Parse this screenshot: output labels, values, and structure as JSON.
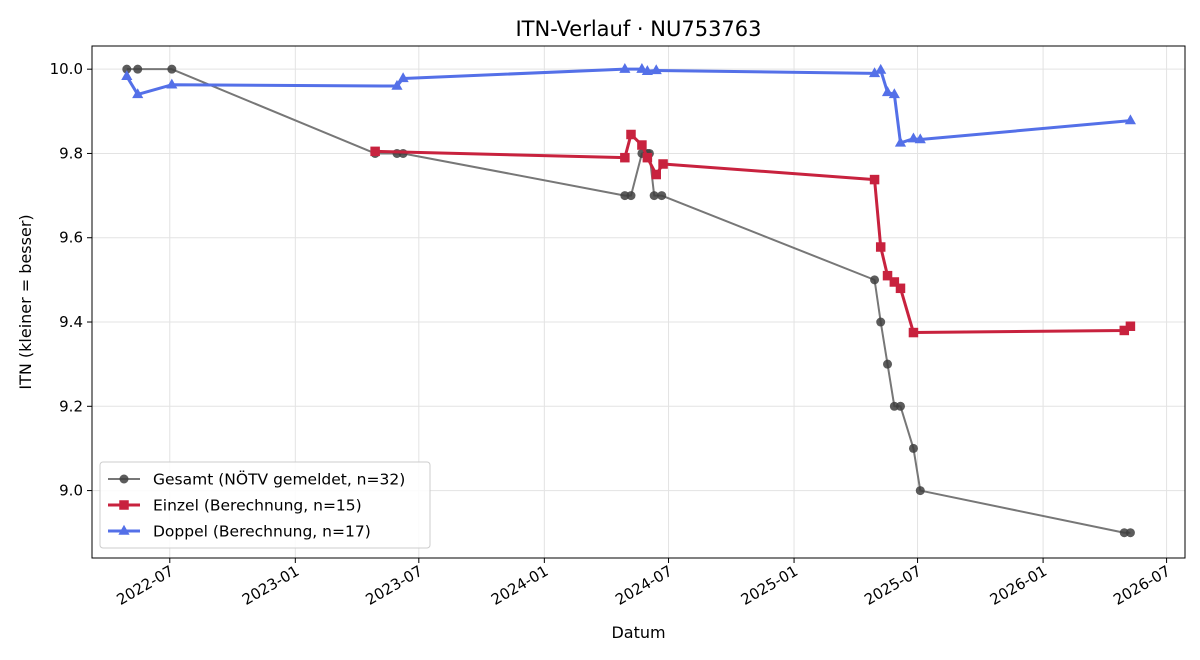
{
  "chart_data": {
    "type": "line",
    "title": "ITN-Verlauf · NU753763",
    "xlabel": "Datum",
    "ylabel": "ITN  (kleiner = besser)",
    "x_axis_type": "date",
    "xlim": [
      "2022-03-09",
      "2026-07-28"
    ],
    "ylim": [
      8.84,
      10.055
    ],
    "x_ticks": [
      {
        "date": "2022-07-01",
        "label": "2022-07"
      },
      {
        "date": "2023-01-01",
        "label": "2023-01"
      },
      {
        "date": "2023-07-01",
        "label": "2023-07"
      },
      {
        "date": "2024-01-01",
        "label": "2024-01"
      },
      {
        "date": "2024-07-01",
        "label": "2024-07"
      },
      {
        "date": "2025-01-01",
        "label": "2025-01"
      },
      {
        "date": "2025-07-01",
        "label": "2025-07"
      },
      {
        "date": "2026-01-01",
        "label": "2026-01"
      },
      {
        "date": "2026-07-01",
        "label": "2026-07"
      }
    ],
    "y_ticks": [
      9.0,
      9.2,
      9.4,
      9.6,
      9.8,
      10.0
    ],
    "y_tick_labels": [
      "9.0",
      "9.2",
      "9.4",
      "9.6",
      "9.8",
      "10.0"
    ],
    "grid": true,
    "legend_position": "lower-left",
    "series": [
      {
        "name": "Gesamt (NÖTV gemeldet, n=32)",
        "color": "#777777",
        "marker_color": "#404040",
        "marker": "circle",
        "points": [
          {
            "x": "2022-04-29",
            "y": 10.0
          },
          {
            "x": "2022-05-15",
            "y": 10.0
          },
          {
            "x": "2022-07-04",
            "y": 10.0
          },
          {
            "x": "2023-04-28",
            "y": 9.8
          },
          {
            "x": "2023-05-30",
            "y": 9.8
          },
          {
            "x": "2023-06-08",
            "y": 9.8
          },
          {
            "x": "2024-04-28",
            "y": 9.7
          },
          {
            "x": "2024-05-07",
            "y": 9.7
          },
          {
            "x": "2024-05-23",
            "y": 9.8
          },
          {
            "x": "2024-05-31",
            "y": 9.8
          },
          {
            "x": "2024-06-03",
            "y": 9.8
          },
          {
            "x": "2024-06-10",
            "y": 9.7
          },
          {
            "x": "2024-06-21",
            "y": 9.7
          },
          {
            "x": "2025-04-29",
            "y": 9.5
          },
          {
            "x": "2025-05-08",
            "y": 9.4
          },
          {
            "x": "2025-05-18",
            "y": 9.3
          },
          {
            "x": "2025-05-28",
            "y": 9.2
          },
          {
            "x": "2025-06-06",
            "y": 9.2
          },
          {
            "x": "2025-06-25",
            "y": 9.1
          },
          {
            "x": "2025-07-05",
            "y": 9.0
          },
          {
            "x": "2026-04-30",
            "y": 8.9
          },
          {
            "x": "2026-05-09",
            "y": 8.9
          }
        ]
      },
      {
        "name": "Einzel (Berechnung, n=15)",
        "color": "#c8223e",
        "marker_color": "#c8223e",
        "marker": "square",
        "points": [
          {
            "x": "2023-04-28",
            "y": 9.805
          },
          {
            "x": "2024-04-28",
            "y": 9.79
          },
          {
            "x": "2024-05-07",
            "y": 9.845
          },
          {
            "x": "2024-05-23",
            "y": 9.82
          },
          {
            "x": "2024-05-31",
            "y": 9.79
          },
          {
            "x": "2024-06-13",
            "y": 9.75
          },
          {
            "x": "2024-06-23",
            "y": 9.775
          },
          {
            "x": "2025-04-29",
            "y": 9.738
          },
          {
            "x": "2025-05-08",
            "y": 9.578
          },
          {
            "x": "2025-05-18",
            "y": 9.51
          },
          {
            "x": "2025-05-28",
            "y": 9.495
          },
          {
            "x": "2025-06-06",
            "y": 9.48
          },
          {
            "x": "2025-06-25",
            "y": 9.375
          },
          {
            "x": "2026-04-30",
            "y": 9.38
          },
          {
            "x": "2026-05-09",
            "y": 9.39
          }
        ]
      },
      {
        "name": "Doppel (Berechnung, n=17)",
        "color": "#5470e8",
        "marker_color": "#5470e8",
        "marker": "triangle-up",
        "points": [
          {
            "x": "2022-04-29",
            "y": 9.983
          },
          {
            "x": "2022-05-15",
            "y": 9.94
          },
          {
            "x": "2022-07-04",
            "y": 9.963
          },
          {
            "x": "2023-05-30",
            "y": 9.96
          },
          {
            "x": "2023-06-08",
            "y": 9.978
          },
          {
            "x": "2024-04-28",
            "y": 10.0
          },
          {
            "x": "2024-05-23",
            "y": 10.0
          },
          {
            "x": "2024-05-31",
            "y": 9.995
          },
          {
            "x": "2024-06-13",
            "y": 9.997
          },
          {
            "x": "2025-04-29",
            "y": 9.99
          },
          {
            "x": "2025-05-08",
            "y": 9.998
          },
          {
            "x": "2025-05-18",
            "y": 9.945
          },
          {
            "x": "2025-05-28",
            "y": 9.94
          },
          {
            "x": "2025-06-06",
            "y": 9.825
          },
          {
            "x": "2025-06-25",
            "y": 9.835
          },
          {
            "x": "2025-07-05",
            "y": 9.833
          },
          {
            "x": "2026-05-09",
            "y": 9.878
          }
        ]
      }
    ]
  }
}
